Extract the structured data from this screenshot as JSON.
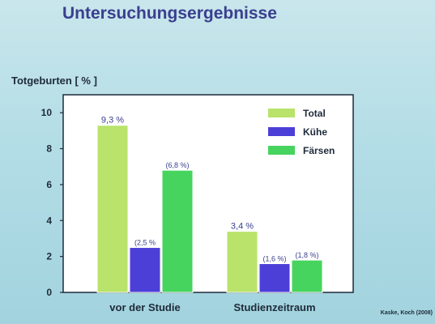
{
  "page": {
    "title": "Untersuchungsergebnisse",
    "ylabel": "Totgeburten  [ % ]",
    "source": "Kaske, Koch (2008)"
  },
  "chart_data": {
    "type": "bar",
    "categories": [
      "vor der Studie",
      "Studienzeitraum"
    ],
    "series": [
      {
        "name": "Total",
        "color": "#b9e36a",
        "values": [
          9.3,
          3.4
        ],
        "labels": [
          "9,3 %",
          "3,4 %"
        ]
      },
      {
        "name": "Kühe",
        "color": "#4c3fd8",
        "values": [
          2.5,
          1.6
        ],
        "labels": [
          "(2,5 %",
          "(1,6 %)"
        ]
      },
      {
        "name": "Färsen",
        "color": "#47d45e",
        "values": [
          6.8,
          1.8
        ],
        "labels": [
          "(6,8 %)",
          "(1,8 %)"
        ]
      }
    ],
    "ylim": [
      0,
      11
    ],
    "yticks": [
      0,
      2,
      4,
      6,
      8,
      10
    ],
    "legend": "top-right",
    "grid": false
  }
}
